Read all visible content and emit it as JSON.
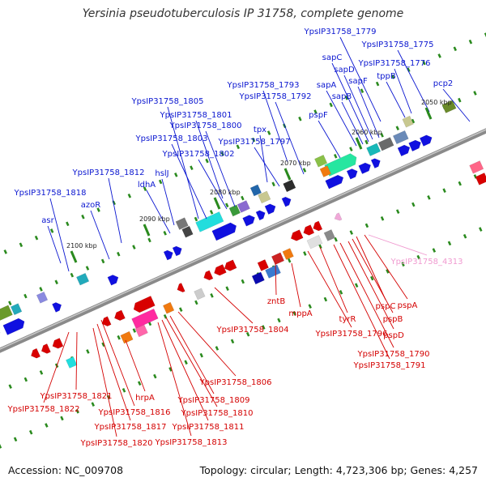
{
  "title": "Yersinia pseudotuberculosis IP 31758, complete genome",
  "accession": "Accession: NC_009708",
  "stats": "Topology: circular; Length: 4,723,306 bp; Genes: 4,257",
  "colors": {
    "forward_label": "#0a16d0",
    "reverse_label": "#d40000",
    "highlight_label": "#f09ad0",
    "backbone": "#8a8a8a",
    "tick": "#2a8a1e"
  },
  "ticks": [
    {
      "kbp": 2050,
      "label": "2050 kbp"
    },
    {
      "kbp": 2060,
      "label": "2060 kbp"
    },
    {
      "kbp": 2070,
      "label": "2070 kbp"
    },
    {
      "kbp": 2080,
      "label": "2080 kbp"
    },
    {
      "kbp": 2090,
      "label": "2090 kbp"
    },
    {
      "kbp": 2100,
      "label": "2100 kbp"
    }
  ],
  "forward_genes": [
    "pcp2",
    "YpsIP31758_1775",
    "YpsIP31758_1776",
    "YpsIP31758_1779",
    "tppB",
    "sapC",
    "sapD",
    "sapF",
    "sapA",
    "sapB",
    "pspF",
    "YpsIP31758_1793",
    "YpsIP31758_1792",
    "tpx",
    "YpsIP31758_1797",
    "YpsIP31758_1805",
    "YpsIP31758_1801",
    "YpsIP31758_1800",
    "YpsIP31758_1803",
    "YpsIP31758_1802",
    "hslJ",
    "ldhA",
    "YpsIP31758_1812",
    "azoR",
    "YpsIP31758_1818",
    "asr"
  ],
  "reverse_genes": [
    "pspA",
    "pspC",
    "pspB",
    "pspD",
    "YpsIP31758_1790",
    "YpsIP31758_1791",
    "tyrR",
    "YpsIP31758_1796",
    "mppA",
    "zntB",
    "YpsIP31758_1804",
    "YpsIP31758_1806",
    "YpsIP31758_1809",
    "YpsIP31758_1810",
    "YpsIP31758_1811",
    "YpsIP31758_1813",
    "hrpA",
    "YpsIP31758_1816",
    "YpsIP31758_1817",
    "YpsIP31758_1820",
    "YpsIP31758_1821",
    "YpsIP31758_1822"
  ],
  "highlight_genes": [
    "YpsIP31758_4313"
  ]
}
